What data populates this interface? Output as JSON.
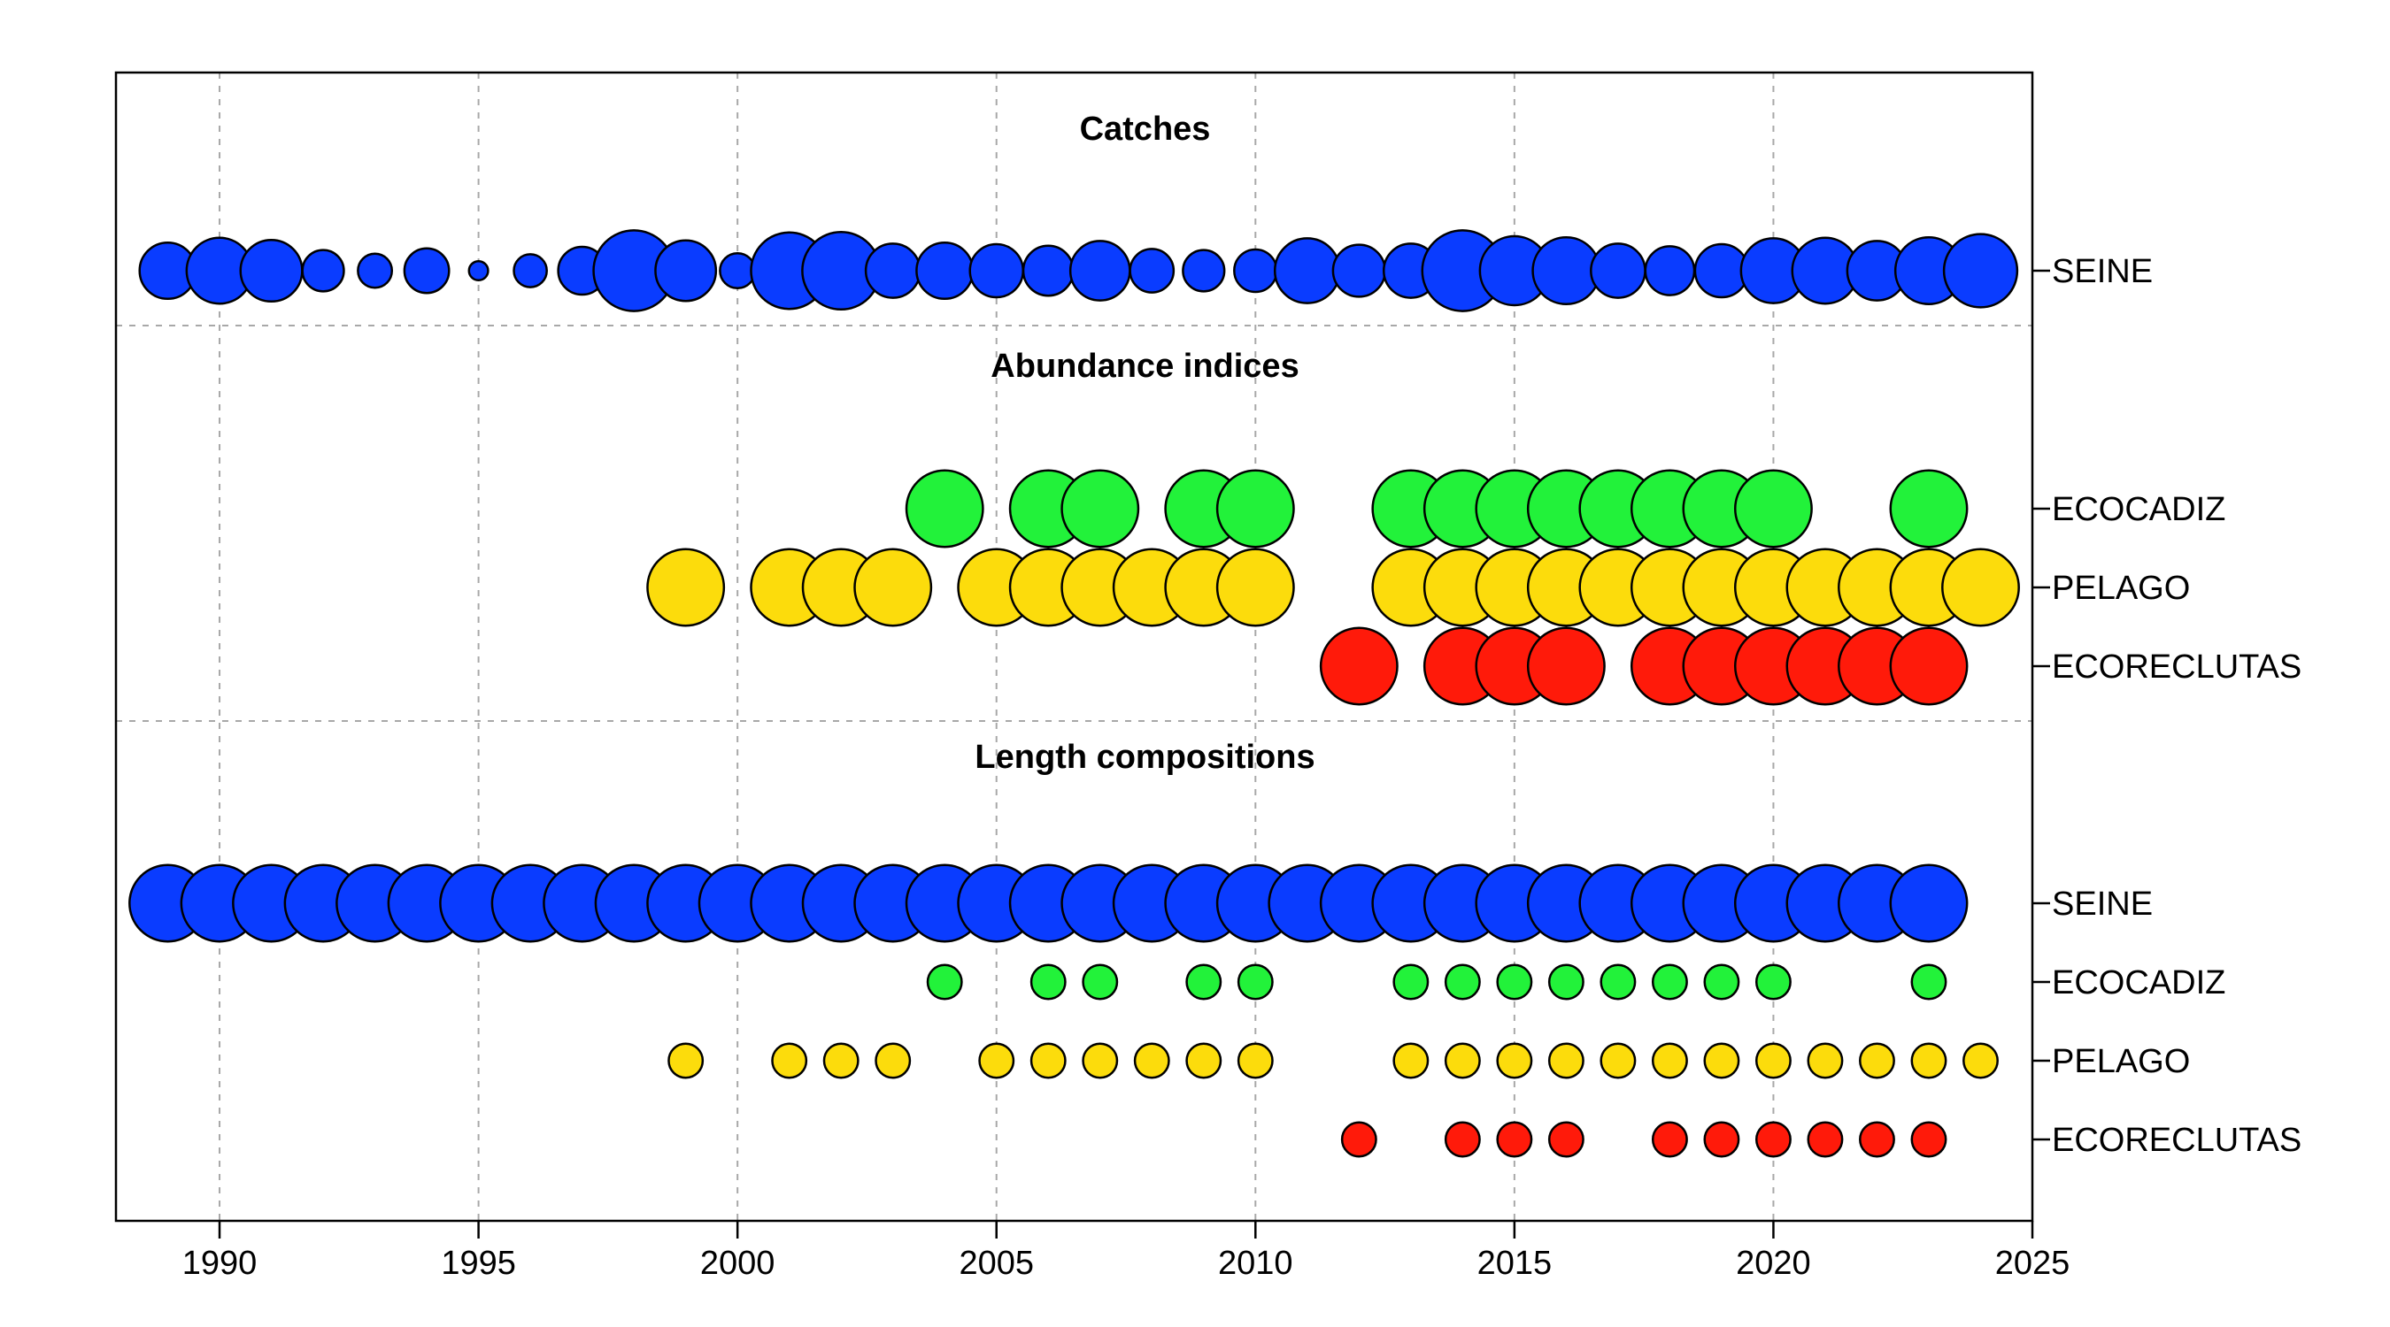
{
  "chart_data": {
    "type": "scatter",
    "title": "",
    "xlabel": "",
    "ylabel": "",
    "xlim": [
      1988,
      2025
    ],
    "x_ticks": [
      1990,
      1995,
      2000,
      2005,
      2010,
      2015,
      2020,
      2025
    ],
    "grid": true,
    "colors": {
      "SEINE": "#0a3cff",
      "ECOCADIZ": "#22f23a",
      "PELAGO": "#fcdc0c",
      "ECORECLUTAS": "#ff1a0a"
    },
    "sections": [
      {
        "title": "Catches",
        "series": [
          {
            "name": "SEINE",
            "color_key": "SEINE",
            "points": [
              {
                "year": 1989,
                "value": 0.53
              },
              {
                "year": 1990,
                "value": 0.62
              },
              {
                "year": 1991,
                "value": 0.58
              },
              {
                "year": 1992,
                "value": 0.39
              },
              {
                "year": 1993,
                "value": 0.32
              },
              {
                "year": 1994,
                "value": 0.42
              },
              {
                "year": 1995,
                "value": 0.18
              },
              {
                "year": 1996,
                "value": 0.31
              },
              {
                "year": 1997,
                "value": 0.45
              },
              {
                "year": 1998,
                "value": 0.76
              },
              {
                "year": 1999,
                "value": 0.57
              },
              {
                "year": 2000,
                "value": 0.33
              },
              {
                "year": 2001,
                "value": 0.72
              },
              {
                "year": 2002,
                "value": 0.73
              },
              {
                "year": 2003,
                "value": 0.51
              },
              {
                "year": 2004,
                "value": 0.53
              },
              {
                "year": 2005,
                "value": 0.5
              },
              {
                "year": 2006,
                "value": 0.47
              },
              {
                "year": 2007,
                "value": 0.56
              },
              {
                "year": 2008,
                "value": 0.41
              },
              {
                "year": 2009,
                "value": 0.39
              },
              {
                "year": 2010,
                "value": 0.4
              },
              {
                "year": 2011,
                "value": 0.61
              },
              {
                "year": 2012,
                "value": 0.49
              },
              {
                "year": 2013,
                "value": 0.51
              },
              {
                "year": 2014,
                "value": 0.76
              },
              {
                "year": 2015,
                "value": 0.65
              },
              {
                "year": 2016,
                "value": 0.63
              },
              {
                "year": 2017,
                "value": 0.51
              },
              {
                "year": 2018,
                "value": 0.46
              },
              {
                "year": 2019,
                "value": 0.5
              },
              {
                "year": 2020,
                "value": 0.61
              },
              {
                "year": 2021,
                "value": 0.62
              },
              {
                "year": 2022,
                "value": 0.56
              },
              {
                "year": 2023,
                "value": 0.63
              },
              {
                "year": 2024,
                "value": 0.69
              }
            ]
          }
        ]
      },
      {
        "title": "Abundance indices",
        "series": [
          {
            "name": "ECOCADIZ",
            "color_key": "ECOCADIZ",
            "points": [
              {
                "year": 2004,
                "value": 0.72
              },
              {
                "year": 2006,
                "value": 0.72
              },
              {
                "year": 2007,
                "value": 0.72
              },
              {
                "year": 2009,
                "value": 0.72
              },
              {
                "year": 2010,
                "value": 0.72
              },
              {
                "year": 2013,
                "value": 0.72
              },
              {
                "year": 2014,
                "value": 0.72
              },
              {
                "year": 2015,
                "value": 0.72
              },
              {
                "year": 2016,
                "value": 0.72
              },
              {
                "year": 2017,
                "value": 0.72
              },
              {
                "year": 2018,
                "value": 0.72
              },
              {
                "year": 2019,
                "value": 0.72
              },
              {
                "year": 2020,
                "value": 0.72
              },
              {
                "year": 2023,
                "value": 0.72
              }
            ]
          },
          {
            "name": "PELAGO",
            "color_key": "PELAGO",
            "points": [
              {
                "year": 1999,
                "value": 0.72
              },
              {
                "year": 2001,
                "value": 0.72
              },
              {
                "year": 2002,
                "value": 0.72
              },
              {
                "year": 2003,
                "value": 0.72
              },
              {
                "year": 2005,
                "value": 0.72
              },
              {
                "year": 2006,
                "value": 0.72
              },
              {
                "year": 2007,
                "value": 0.72
              },
              {
                "year": 2008,
                "value": 0.72
              },
              {
                "year": 2009,
                "value": 0.72
              },
              {
                "year": 2010,
                "value": 0.72
              },
              {
                "year": 2013,
                "value": 0.72
              },
              {
                "year": 2014,
                "value": 0.72
              },
              {
                "year": 2015,
                "value": 0.72
              },
              {
                "year": 2016,
                "value": 0.72
              },
              {
                "year": 2017,
                "value": 0.72
              },
              {
                "year": 2018,
                "value": 0.72
              },
              {
                "year": 2019,
                "value": 0.72
              },
              {
                "year": 2020,
                "value": 0.72
              },
              {
                "year": 2021,
                "value": 0.72
              },
              {
                "year": 2022,
                "value": 0.72
              },
              {
                "year": 2023,
                "value": 0.72
              },
              {
                "year": 2024,
                "value": 0.72
              }
            ]
          },
          {
            "name": "ECORECLUTAS",
            "color_key": "ECORECLUTAS",
            "points": [
              {
                "year": 2012,
                "value": 0.72
              },
              {
                "year": 2014,
                "value": 0.72
              },
              {
                "year": 2015,
                "value": 0.72
              },
              {
                "year": 2016,
                "value": 0.72
              },
              {
                "year": 2018,
                "value": 0.72
              },
              {
                "year": 2019,
                "value": 0.72
              },
              {
                "year": 2020,
                "value": 0.72
              },
              {
                "year": 2021,
                "value": 0.72
              },
              {
                "year": 2022,
                "value": 0.72
              },
              {
                "year": 2023,
                "value": 0.72
              }
            ]
          }
        ]
      },
      {
        "title": "Length compositions",
        "series": [
          {
            "name": "SEINE",
            "color_key": "SEINE",
            "points": [
              {
                "year": 1989,
                "value": 0.72
              },
              {
                "year": 1990,
                "value": 0.72
              },
              {
                "year": 1991,
                "value": 0.72
              },
              {
                "year": 1992,
                "value": 0.72
              },
              {
                "year": 1993,
                "value": 0.72
              },
              {
                "year": 1994,
                "value": 0.72
              },
              {
                "year": 1995,
                "value": 0.72
              },
              {
                "year": 1996,
                "value": 0.72
              },
              {
                "year": 1997,
                "value": 0.72
              },
              {
                "year": 1998,
                "value": 0.72
              },
              {
                "year": 1999,
                "value": 0.72
              },
              {
                "year": 2000,
                "value": 0.72
              },
              {
                "year": 2001,
                "value": 0.72
              },
              {
                "year": 2002,
                "value": 0.72
              },
              {
                "year": 2003,
                "value": 0.72
              },
              {
                "year": 2004,
                "value": 0.72
              },
              {
                "year": 2005,
                "value": 0.72
              },
              {
                "year": 2006,
                "value": 0.72
              },
              {
                "year": 2007,
                "value": 0.72
              },
              {
                "year": 2008,
                "value": 0.72
              },
              {
                "year": 2009,
                "value": 0.72
              },
              {
                "year": 2010,
                "value": 0.72
              },
              {
                "year": 2011,
                "value": 0.72
              },
              {
                "year": 2012,
                "value": 0.72
              },
              {
                "year": 2013,
                "value": 0.72
              },
              {
                "year": 2014,
                "value": 0.72
              },
              {
                "year": 2015,
                "value": 0.72
              },
              {
                "year": 2016,
                "value": 0.72
              },
              {
                "year": 2017,
                "value": 0.72
              },
              {
                "year": 2018,
                "value": 0.72
              },
              {
                "year": 2019,
                "value": 0.72
              },
              {
                "year": 2020,
                "value": 0.72
              },
              {
                "year": 2021,
                "value": 0.72
              },
              {
                "year": 2022,
                "value": 0.72
              },
              {
                "year": 2023,
                "value": 0.72
              }
            ]
          },
          {
            "name": "ECOCADIZ",
            "color_key": "ECOCADIZ",
            "points": [
              {
                "year": 2004,
                "value": 0.32
              },
              {
                "year": 2006,
                "value": 0.32
              },
              {
                "year": 2007,
                "value": 0.32
              },
              {
                "year": 2009,
                "value": 0.32
              },
              {
                "year": 2010,
                "value": 0.32
              },
              {
                "year": 2013,
                "value": 0.32
              },
              {
                "year": 2014,
                "value": 0.32
              },
              {
                "year": 2015,
                "value": 0.32
              },
              {
                "year": 2016,
                "value": 0.32
              },
              {
                "year": 2017,
                "value": 0.32
              },
              {
                "year": 2018,
                "value": 0.32
              },
              {
                "year": 2019,
                "value": 0.32
              },
              {
                "year": 2020,
                "value": 0.32
              },
              {
                "year": 2023,
                "value": 0.32
              }
            ]
          },
          {
            "name": "PELAGO",
            "color_key": "PELAGO",
            "points": [
              {
                "year": 1999,
                "value": 0.32
              },
              {
                "year": 2001,
                "value": 0.32
              },
              {
                "year": 2002,
                "value": 0.32
              },
              {
                "year": 2003,
                "value": 0.32
              },
              {
                "year": 2005,
                "value": 0.32
              },
              {
                "year": 2006,
                "value": 0.32
              },
              {
                "year": 2007,
                "value": 0.32
              },
              {
                "year": 2008,
                "value": 0.32
              },
              {
                "year": 2009,
                "value": 0.32
              },
              {
                "year": 2010,
                "value": 0.32
              },
              {
                "year": 2013,
                "value": 0.32
              },
              {
                "year": 2014,
                "value": 0.32
              },
              {
                "year": 2015,
                "value": 0.32
              },
              {
                "year": 2016,
                "value": 0.32
              },
              {
                "year": 2017,
                "value": 0.32
              },
              {
                "year": 2018,
                "value": 0.32
              },
              {
                "year": 2019,
                "value": 0.32
              },
              {
                "year": 2020,
                "value": 0.32
              },
              {
                "year": 2021,
                "value": 0.32
              },
              {
                "year": 2022,
                "value": 0.32
              },
              {
                "year": 2023,
                "value": 0.32
              },
              {
                "year": 2024,
                "value": 0.32
              }
            ]
          },
          {
            "name": "ECORECLUTAS",
            "color_key": "ECORECLUTAS",
            "points": [
              {
                "year": 2012,
                "value": 0.32
              },
              {
                "year": 2014,
                "value": 0.32
              },
              {
                "year": 2015,
                "value": 0.32
              },
              {
                "year": 2016,
                "value": 0.32
              },
              {
                "year": 2018,
                "value": 0.32
              },
              {
                "year": 2019,
                "value": 0.32
              },
              {
                "year": 2020,
                "value": 0.32
              },
              {
                "year": 2021,
                "value": 0.32
              },
              {
                "year": 2022,
                "value": 0.32
              },
              {
                "year": 2023,
                "value": 0.32
              }
            ]
          }
        ]
      }
    ]
  }
}
